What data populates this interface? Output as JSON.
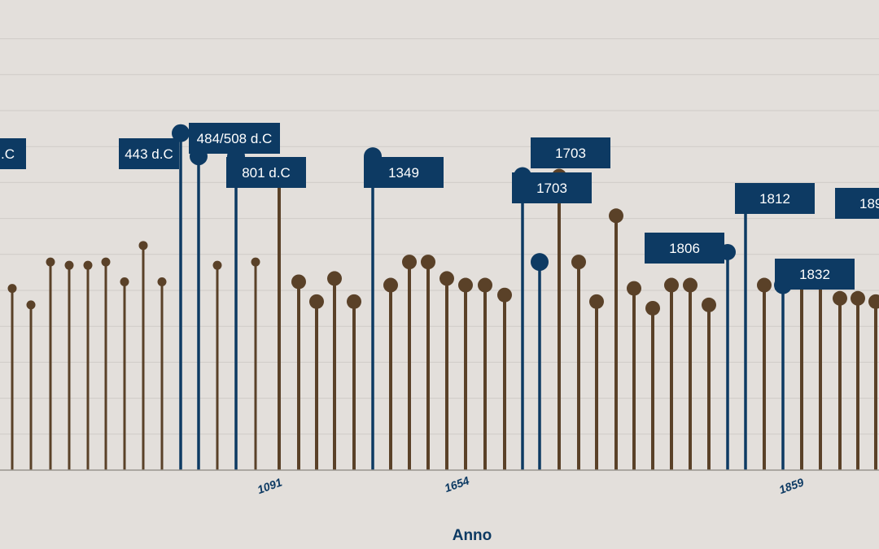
{
  "chart_data": {
    "type": "lollipop",
    "xlabel": "Anno",
    "tick_labels": [
      "1091",
      "1654",
      "1859"
    ],
    "grid": true,
    "colors": {
      "default": "#5a4128",
      "highlight": "#0d3a63",
      "background": "#e3dfdb",
      "grid": "#cfcbc7"
    },
    "ylim": [
      0,
      13
    ],
    "series": [
      {
        "values": [
          {
            "v": 5.5,
            "h": false
          },
          {
            "v": 5.0,
            "h": false
          },
          {
            "v": 6.3,
            "h": false
          },
          {
            "v": 6.2,
            "h": false
          },
          {
            "v": 6.2,
            "h": false
          },
          {
            "v": 6.3,
            "h": false
          },
          {
            "v": 5.7,
            "h": false
          },
          {
            "v": 6.8,
            "h": false
          },
          {
            "v": 5.7,
            "h": false
          },
          {
            "v": 10.2,
            "h": true,
            "label": "443 d.C"
          },
          {
            "v": 9.5,
            "h": true,
            "label": "484/508 d.C"
          },
          {
            "v": 6.2,
            "h": false
          },
          {
            "v": 9.5,
            "h": true,
            "label": "801 d.C"
          },
          {
            "v": 6.3,
            "h": false
          },
          {
            "v": 8.8,
            "h": false
          },
          {
            "v": 5.7,
            "h": false
          },
          {
            "v": 5.1,
            "h": false
          },
          {
            "v": 5.8,
            "h": false
          },
          {
            "v": 5.1,
            "h": false
          },
          {
            "v": 9.5,
            "h": true,
            "label": "1349"
          },
          {
            "v": 5.6,
            "h": false
          },
          {
            "v": 6.3,
            "h": false
          },
          {
            "v": 6.3,
            "h": false
          },
          {
            "v": 5.8,
            "h": false
          },
          {
            "v": 5.6,
            "h": false
          },
          {
            "v": 5.6,
            "h": false
          },
          {
            "v": 5.3,
            "h": false
          },
          {
            "v": 8.9,
            "h": true,
            "label": "1703"
          },
          {
            "v": 6.3,
            "h": true,
            "label": "1703"
          },
          {
            "v": 8.9,
            "h": false
          },
          {
            "v": 6.3,
            "h": false
          },
          {
            "v": 5.1,
            "h": false
          },
          {
            "v": 7.7,
            "h": false
          },
          {
            "v": 5.5,
            "h": false
          },
          {
            "v": 4.9,
            "h": false
          },
          {
            "v": 5.6,
            "h": false
          },
          {
            "v": 5.6,
            "h": false
          },
          {
            "v": 5.0,
            "h": false
          },
          {
            "v": 6.6,
            "h": true,
            "label": "1806"
          },
          {
            "v": 8.2,
            "h": true,
            "label": "1812"
          },
          {
            "v": 5.6,
            "h": false
          },
          {
            "v": 5.6,
            "h": true,
            "label": "1832"
          },
          {
            "v": 5.7,
            "h": false
          },
          {
            "v": 5.7,
            "h": false
          },
          {
            "v": 5.2,
            "h": false
          },
          {
            "v": 5.2,
            "h": false
          },
          {
            "v": 5.1,
            "h": false
          }
        ]
      }
    ],
    "annotations_partial": [
      ".C",
      "189"
    ]
  }
}
